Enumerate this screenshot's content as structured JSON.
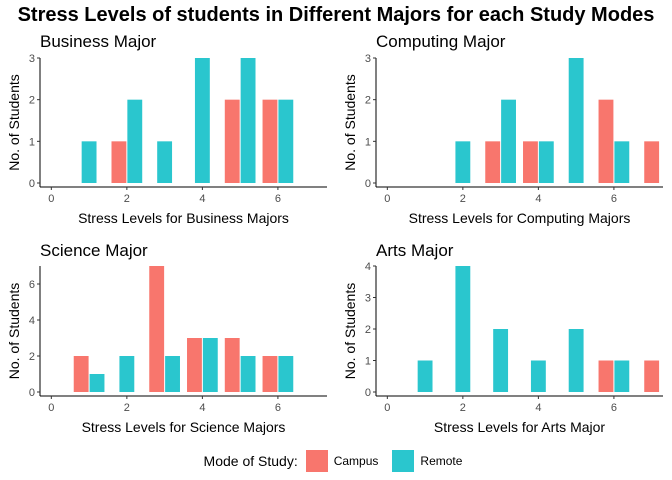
{
  "title": "Stress Levels of students in Different Majors for each Study Modes",
  "legend": {
    "title": "Mode of Study:",
    "placement": "bottom",
    "items": [
      {
        "name": "Campus",
        "color": "#F8766D"
      },
      {
        "name": "Remote",
        "color": "#2AC6CE"
      }
    ]
  },
  "chart_data": [
    {
      "type": "bar",
      "title": "Business Major",
      "xlabel": "Stress Levels for Business Majors",
      "ylabel": "No. of Students",
      "xlim": [
        -0.3,
        7.3
      ],
      "ylim": [
        0,
        3
      ],
      "xticks": [
        0,
        2,
        4,
        6
      ],
      "yticks": [
        0,
        1,
        2,
        3
      ],
      "series": [
        {
          "name": "Campus",
          "x": [
            2,
            5,
            6
          ],
          "values": [
            1,
            2,
            2
          ]
        },
        {
          "name": "Remote",
          "x": [
            1,
            2,
            3,
            4,
            5,
            6
          ],
          "values": [
            1,
            2,
            1,
            3,
            3,
            2
          ]
        }
      ]
    },
    {
      "type": "bar",
      "title": "Computing Major",
      "xlabel": "Stress Levels for Computing Majors",
      "ylabel": "No. of Students",
      "xlim": [
        -0.3,
        7.3
      ],
      "ylim": [
        0,
        3
      ],
      "xticks": [
        0,
        2,
        4,
        6
      ],
      "yticks": [
        0,
        1,
        2,
        3
      ],
      "series": [
        {
          "name": "Campus",
          "x": [
            3,
            4,
            6,
            7
          ],
          "values": [
            1,
            1,
            2,
            1
          ]
        },
        {
          "name": "Remote",
          "x": [
            2,
            3,
            4,
            5,
            6
          ],
          "values": [
            1,
            2,
            1,
            3,
            1
          ]
        }
      ]
    },
    {
      "type": "bar",
      "title": "Science Major",
      "xlabel": "Stress Levels for Science Majors",
      "ylabel": "No. of Students",
      "xlim": [
        -0.3,
        7.3
      ],
      "ylim": [
        0,
        7
      ],
      "xticks": [
        0,
        2,
        4,
        6
      ],
      "yticks": [
        0,
        2,
        4,
        6
      ],
      "series": [
        {
          "name": "Campus",
          "x": [
            1,
            3,
            4,
            5,
            6
          ],
          "values": [
            2,
            7,
            3,
            3,
            2
          ]
        },
        {
          "name": "Remote",
          "x": [
            1,
            2,
            3,
            4,
            5,
            6
          ],
          "values": [
            1,
            2,
            2,
            3,
            2,
            2
          ]
        }
      ]
    },
    {
      "type": "bar",
      "title": "Arts Major",
      "xlabel": "Stress Levels for Arts Major",
      "ylabel": "No. of Students",
      "xlim": [
        -0.3,
        7.3
      ],
      "ylim": [
        0,
        4
      ],
      "xticks": [
        0,
        2,
        4,
        6
      ],
      "yticks": [
        0,
        1,
        2,
        3,
        4
      ],
      "series": [
        {
          "name": "Campus",
          "x": [
            6,
            7
          ],
          "values": [
            1,
            1
          ]
        },
        {
          "name": "Remote",
          "x": [
            1,
            2,
            3,
            4,
            5,
            6
          ],
          "values": [
            1,
            4,
            2,
            1,
            2,
            1
          ]
        }
      ]
    }
  ]
}
